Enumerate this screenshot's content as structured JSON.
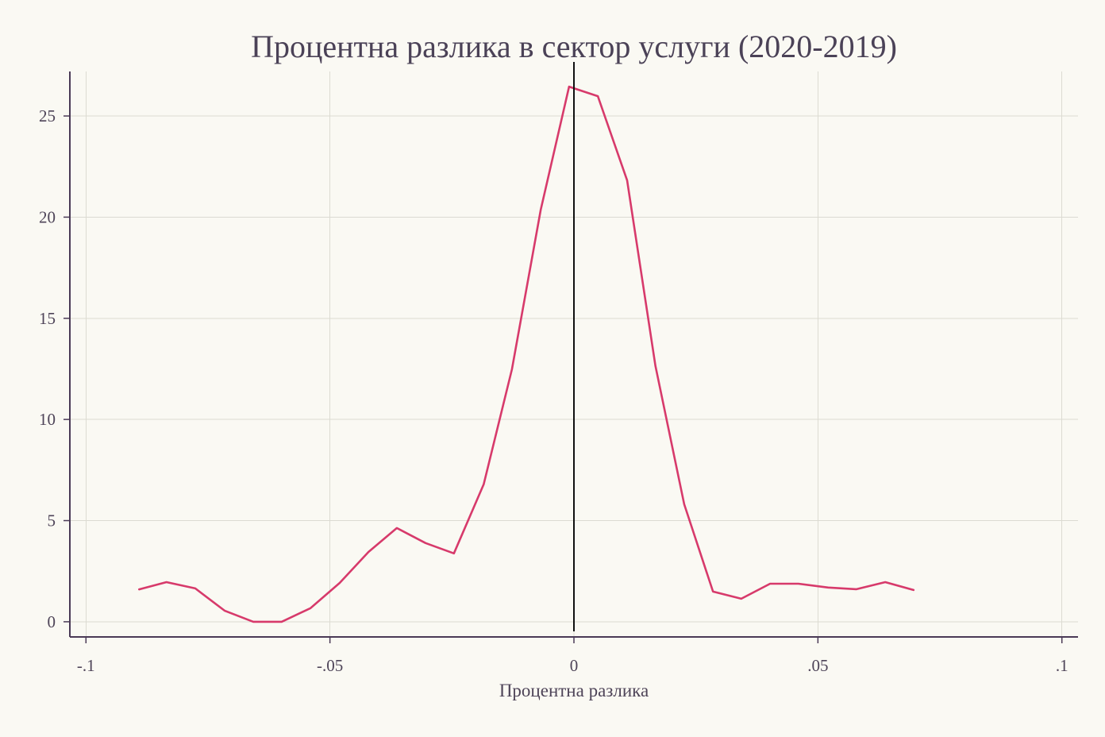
{
  "chart_data": {
    "type": "line",
    "title": "Процентна разлика в сектор услуги (2020-2019)",
    "xlabel": "Процентна разлика",
    "ylabel": "",
    "xlim": [
      -0.1033,
      0.1033
    ],
    "ylim": [
      -0.75,
      27.2
    ],
    "grid": true,
    "x_ticks": [
      {
        "value": -0.1,
        "label": "-.1"
      },
      {
        "value": -0.05,
        "label": "-.05"
      },
      {
        "value": 0,
        "label": "0"
      },
      {
        "value": 0.05,
        "label": ".05"
      },
      {
        "value": 0.1,
        "label": ".1"
      }
    ],
    "y_ticks": [
      {
        "value": 0,
        "label": "0"
      },
      {
        "value": 5,
        "label": "5"
      },
      {
        "value": 10,
        "label": "10"
      },
      {
        "value": 15,
        "label": "15"
      },
      {
        "value": 20,
        "label": "20"
      },
      {
        "value": 25,
        "label": "25"
      }
    ],
    "reference_line": {
      "x": 0,
      "color": "#111111"
    },
    "series": [
      {
        "color": "#d73a6b",
        "x": [
          -0.0891,
          -0.0835,
          -0.0776,
          -0.0716,
          -0.0657,
          -0.0599,
          -0.054,
          -0.048,
          -0.0421,
          -0.0363,
          -0.0304,
          -0.0246,
          -0.0185,
          -0.0127,
          -0.0068,
          -0.001,
          0.0049,
          0.0109,
          0.0167,
          0.0226,
          0.0285,
          0.0343,
          0.0402,
          0.046,
          0.0521,
          0.0579,
          0.0638,
          0.0696
        ],
        "y": [
          1.6,
          1.96,
          1.65,
          0.55,
          0.0,
          0.0,
          0.67,
          1.92,
          3.45,
          4.63,
          3.89,
          3.38,
          6.79,
          12.48,
          20.37,
          26.45,
          25.98,
          21.82,
          12.64,
          5.81,
          1.49,
          1.14,
          1.88,
          1.88,
          1.69,
          1.61,
          1.96,
          1.57
        ]
      }
    ],
    "colors": {
      "background": "#faf9f3",
      "axis": "#4a3a56",
      "grid": "#dcdbd2",
      "text": "#4e4458"
    }
  }
}
